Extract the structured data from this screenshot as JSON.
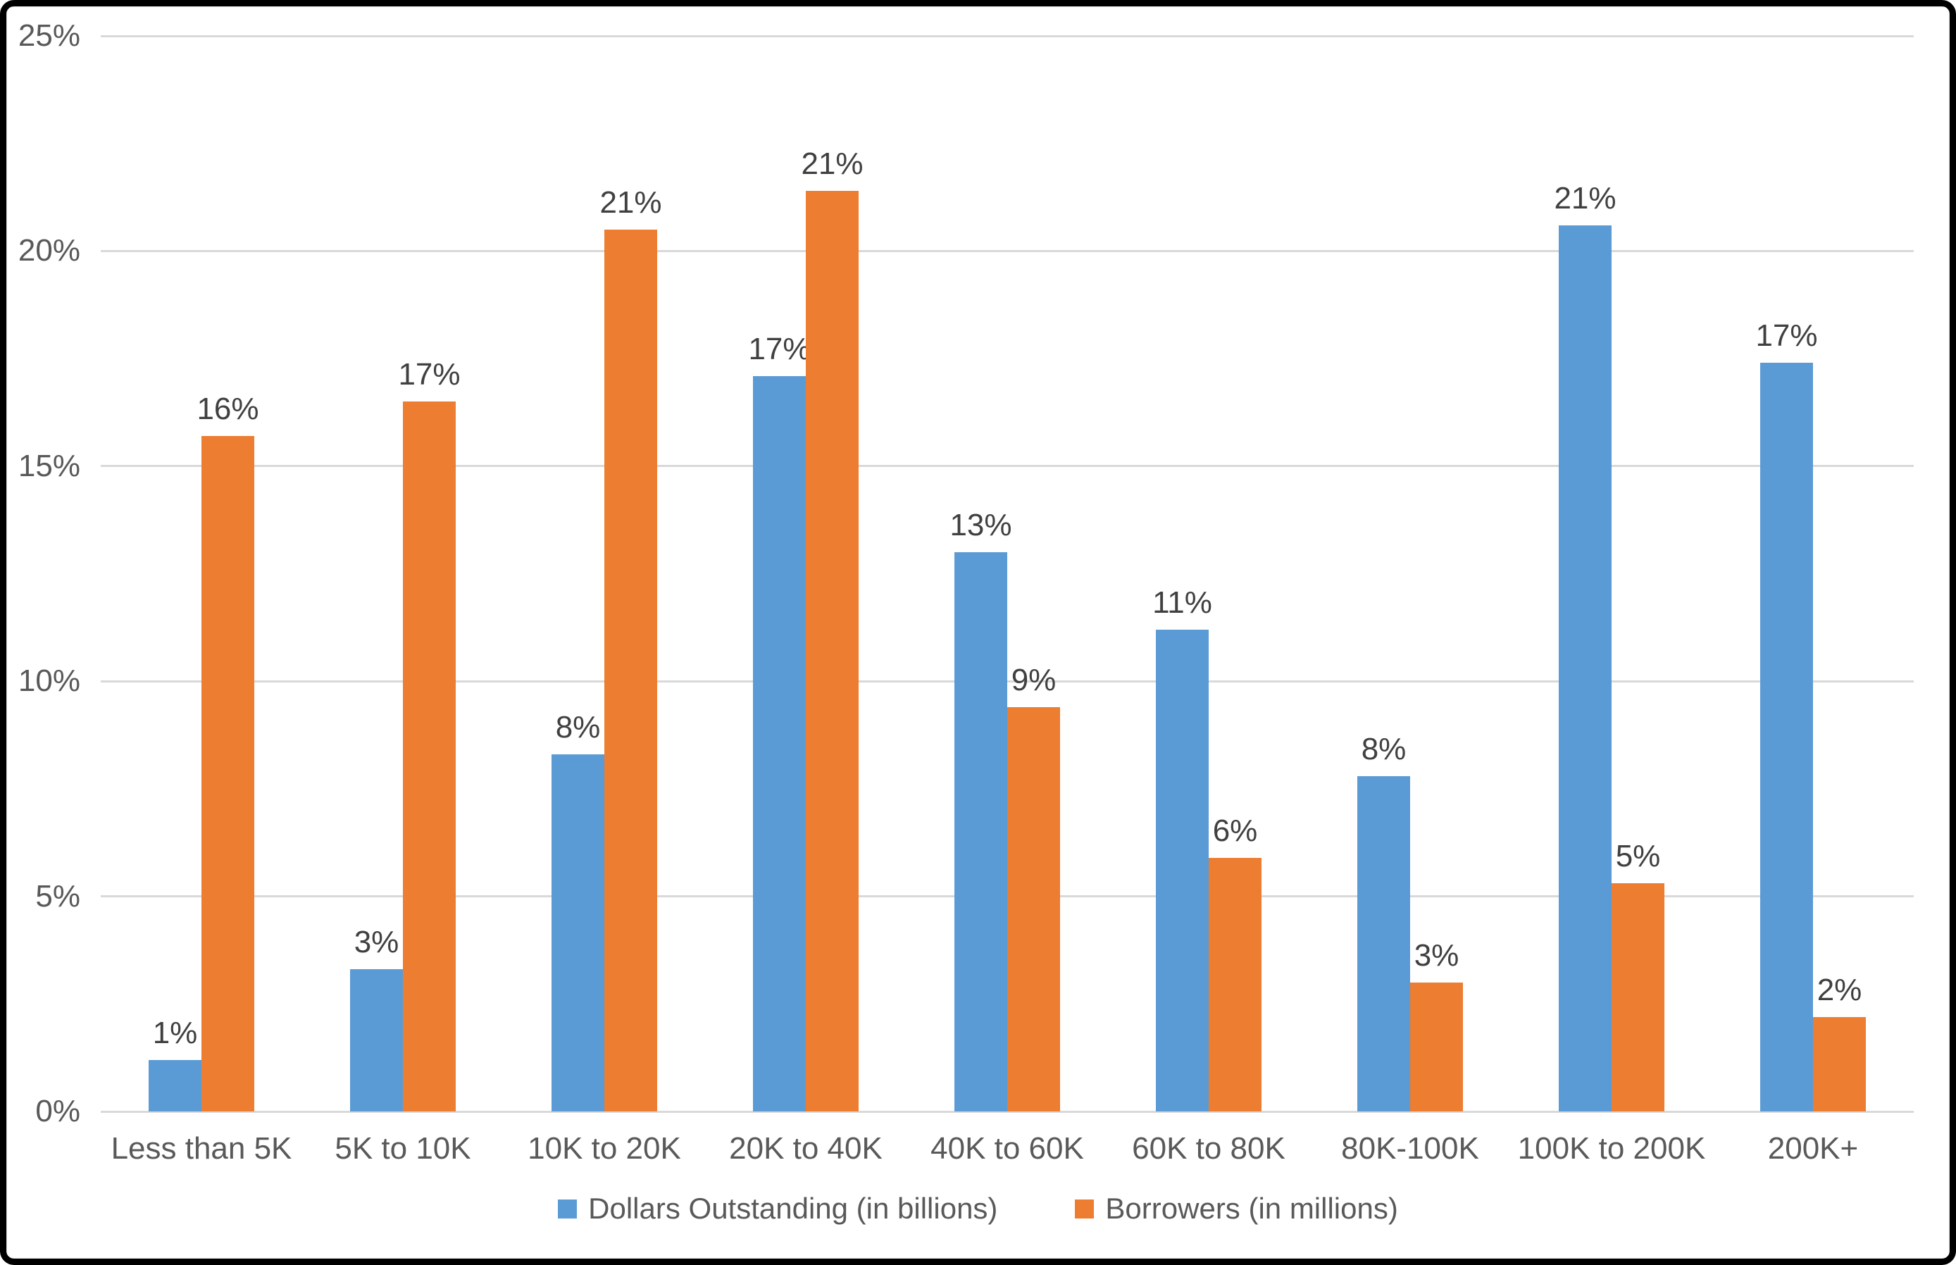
{
  "chart_data": {
    "type": "bar",
    "title": "",
    "xlabel": "",
    "ylabel": "",
    "categories": [
      "Less than 5K",
      "5K to 10K",
      "10K to 20K",
      "20K to 40K",
      "40K to 60K",
      "60K to 80K",
      "80K-100K",
      "100K to 200K",
      "200K+"
    ],
    "series": [
      {
        "name": "Dollars Outstanding (in billions)",
        "color": "#5B9BD5",
        "values": [
          1.2,
          3.3,
          8.3,
          17.1,
          13.0,
          11.2,
          7.8,
          20.6,
          17.4
        ],
        "data_labels": [
          "1%",
          "3%",
          "8%",
          "17%",
          "13%",
          "11%",
          "8%",
          "21%",
          "17%"
        ]
      },
      {
        "name": "Borrowers (in millions)",
        "color": "#ED7D31",
        "values": [
          15.7,
          16.5,
          20.5,
          21.4,
          9.4,
          5.9,
          3.0,
          5.3,
          2.2
        ],
        "data_labels": [
          "16%",
          "17%",
          "21%",
          "21%",
          "9%",
          "6%",
          "3%",
          "5%",
          "2%"
        ]
      }
    ],
    "y_axis": {
      "min": 0,
      "max": 25,
      "step": 5,
      "tick_labels": [
        "0%",
        "5%",
        "10%",
        "15%",
        "20%",
        "25%"
      ]
    },
    "grid": true,
    "legend_position": "bottom",
    "show_data_labels": true
  },
  "colors": {
    "background": "#FFFFFF",
    "frame": "#000000",
    "chart_border": "#D9D9D9",
    "gridline": "#D9D9D9",
    "axis_text": "#595959",
    "data_label_text": "#404040"
  }
}
